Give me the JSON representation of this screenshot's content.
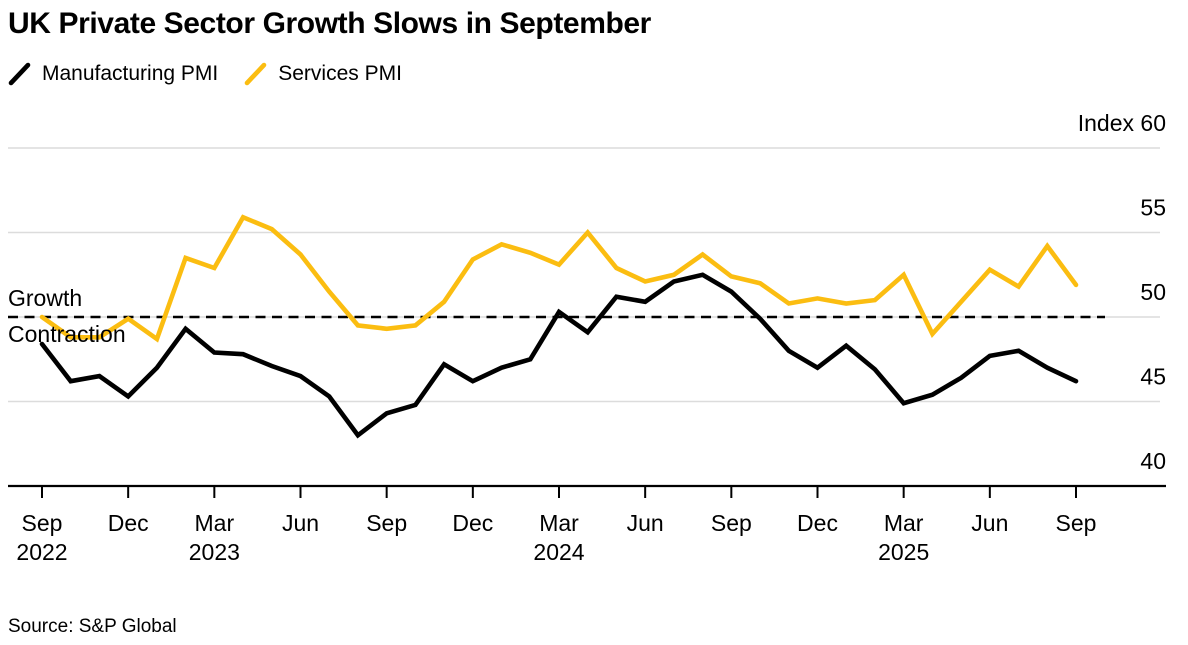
{
  "header": {
    "title": "UK Private Sector Growth Slows in September",
    "legend": [
      {
        "label": "Manufacturing PMI",
        "color": "#000000"
      },
      {
        "label": "Services PMI",
        "color": "#FBBD11"
      }
    ]
  },
  "footer": {
    "source": "Source: S&P Global"
  },
  "chart_data": {
    "type": "line",
    "title": "UK Private Sector Growth Slows in September",
    "x": [
      "Sep 2022",
      "Oct 2022",
      "Nov 2022",
      "Dec 2022",
      "Jan 2023",
      "Feb 2023",
      "Mar 2023",
      "Apr 2023",
      "May 2023",
      "Jun 2023",
      "Jul 2023",
      "Aug 2023",
      "Sep 2023",
      "Oct 2023",
      "Nov 2023",
      "Dec 2023",
      "Jan 2024",
      "Feb 2024",
      "Mar 2024",
      "Apr 2024",
      "May 2024",
      "Jun 2024",
      "Jul 2024",
      "Aug 2024",
      "Sep 2024",
      "Oct 2024",
      "Nov 2024",
      "Dec 2024",
      "Jan 2025",
      "Feb 2025",
      "Mar 2025",
      "Apr 2025",
      "May 2025",
      "Jun 2025",
      "Jul 2025",
      "Aug 2025",
      "Sep 2025"
    ],
    "series": [
      {
        "name": "Manufacturing PMI",
        "color": "#000000",
        "values": [
          48.4,
          46.2,
          46.5,
          45.3,
          47.0,
          49.3,
          47.9,
          47.8,
          47.1,
          46.5,
          45.3,
          43.0,
          44.3,
          44.8,
          47.2,
          46.2,
          47.0,
          47.5,
          50.3,
          49.1,
          51.2,
          50.9,
          52.1,
          52.5,
          51.5,
          49.9,
          48.0,
          47.0,
          48.3,
          46.9,
          44.9,
          45.4,
          46.4,
          47.7,
          48.0,
          47.0,
          46.2
        ]
      },
      {
        "name": "Services PMI",
        "color": "#FBBD11",
        "values": [
          50.0,
          48.8,
          48.8,
          49.9,
          48.7,
          53.5,
          52.9,
          55.9,
          55.2,
          53.7,
          51.5,
          49.5,
          49.3,
          49.5,
          50.9,
          53.4,
          54.3,
          53.8,
          53.1,
          55.0,
          52.9,
          52.1,
          52.5,
          53.7,
          52.4,
          52.0,
          50.8,
          51.1,
          50.8,
          51.0,
          52.5,
          49.0,
          50.9,
          52.8,
          51.8,
          54.2,
          51.9
        ]
      }
    ],
    "y_axis": {
      "range": [
        40,
        60
      ],
      "gridlines": [
        60,
        55,
        50,
        45
      ],
      "labels": [
        {
          "text": "Index 60",
          "value": 60
        },
        {
          "text": "55",
          "value": 55
        },
        {
          "text": "50",
          "value": 50
        },
        {
          "text": "45",
          "value": 45
        },
        {
          "text": "40",
          "value": 40
        }
      ]
    },
    "x_axis": {
      "tick_interval_months": 3,
      "ticks": [
        {
          "label": "Sep",
          "year": "2022"
        },
        {
          "label": "Dec"
        },
        {
          "label": "Mar",
          "year": "2023"
        },
        {
          "label": "Jun"
        },
        {
          "label": "Sep"
        },
        {
          "label": "Dec"
        },
        {
          "label": "Mar",
          "year": "2024"
        },
        {
          "label": "Jun"
        },
        {
          "label": "Sep"
        },
        {
          "label": "Dec"
        },
        {
          "label": "Mar",
          "year": "2025"
        },
        {
          "label": "Jun"
        },
        {
          "label": "Sep"
        }
      ]
    },
    "threshold": {
      "value": 50,
      "above_label": "Growth",
      "below_label": "Contraction",
      "line_style": "dashed",
      "color": "#000000"
    },
    "legend_position": "top-left",
    "grid": "horizontal-only",
    "colors": {
      "gridline": "#DCDCDC",
      "axis": "#000000",
      "background": "#FFFFFF"
    }
  }
}
